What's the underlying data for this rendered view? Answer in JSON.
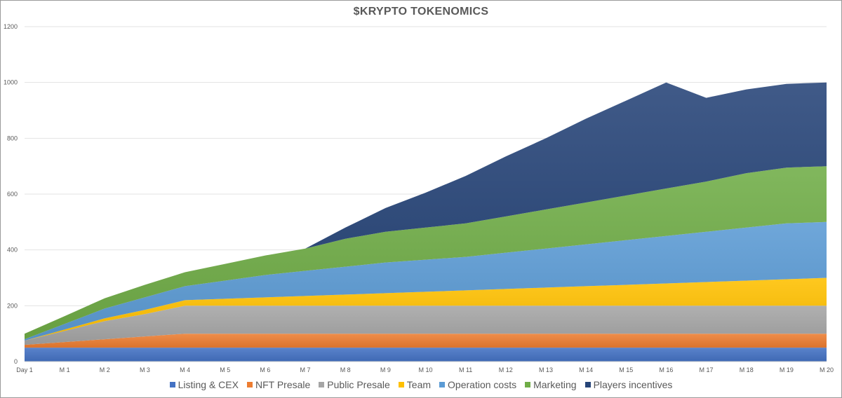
{
  "chart_data": {
    "type": "area",
    "stacked": true,
    "title": "$KRYPTO  TOKENOMICS",
    "xlabel": "",
    "ylabel": "",
    "ylim": [
      0,
      1200
    ],
    "yticks": [
      0,
      200,
      400,
      600,
      800,
      1000,
      1200
    ],
    "grid": true,
    "legend_position": "bottom",
    "categories": [
      "Day 1",
      "M 1",
      "M 2",
      "M 3",
      "M 4",
      "M 5",
      "M 6",
      "M 7",
      "M 8",
      "M 9",
      "M 10",
      "M 11",
      "M 12",
      "M 13",
      "M 14",
      "M 15",
      "M 16",
      "M 17",
      "M 18",
      "M 19",
      "M 20"
    ],
    "series": [
      {
        "name": "Listing & CEX",
        "color": "#4472c4",
        "values": [
          50,
          50,
          50,
          50,
          50,
          50,
          50,
          50,
          50,
          50,
          50,
          50,
          50,
          50,
          50,
          50,
          50,
          50,
          50,
          50,
          50
        ]
      },
      {
        "name": "NFT Presale",
        "color": "#ed7d31",
        "values": [
          10,
          20,
          30,
          40,
          50,
          50,
          50,
          50,
          50,
          50,
          50,
          50,
          50,
          50,
          50,
          50,
          50,
          50,
          50,
          50,
          50
        ]
      },
      {
        "name": "Public Presale",
        "color": "#a5a5a5",
        "values": [
          15,
          40,
          65,
          80,
          100,
          100,
          100,
          100,
          100,
          100,
          100,
          100,
          100,
          100,
          100,
          100,
          100,
          100,
          100,
          100,
          100
        ]
      },
      {
        "name": "Team",
        "color": "#ffc000",
        "values": [
          0,
          5,
          10,
          15,
          20,
          25,
          30,
          35,
          40,
          45,
          50,
          55,
          60,
          65,
          70,
          75,
          80,
          85,
          90,
          95,
          100
        ]
      },
      {
        "name": "Operation costs",
        "color": "#5b9bd5",
        "values": [
          5,
          20,
          35,
          45,
          50,
          65,
          80,
          90,
          100,
          110,
          115,
          120,
          130,
          140,
          150,
          160,
          170,
          180,
          190,
          200,
          200
        ]
      },
      {
        "name": "Marketing",
        "color": "#70ad47",
        "values": [
          20,
          28,
          37,
          45,
          50,
          60,
          70,
          80,
          100,
          110,
          115,
          120,
          130,
          140,
          150,
          160,
          170,
          180,
          195,
          200,
          200
        ]
      },
      {
        "name": "Players incentives",
        "color": "#264478",
        "values": [
          0,
          0,
          0,
          0,
          0,
          0,
          0,
          0,
          40,
          85,
          125,
          170,
          215,
          255,
          300,
          340,
          380,
          300,
          300,
          300,
          300
        ]
      }
    ]
  }
}
